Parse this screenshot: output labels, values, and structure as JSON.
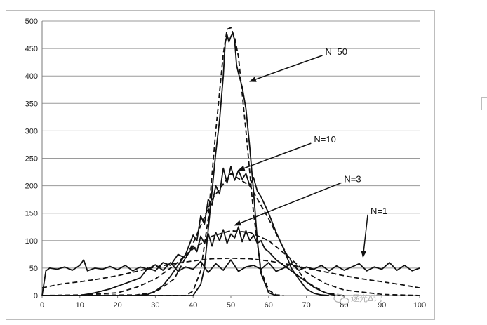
{
  "chart_data": {
    "type": "line",
    "title": "",
    "xlabel": "",
    "ylabel": "",
    "xlim": [
      0,
      100
    ],
    "ylim": [
      0,
      500
    ],
    "x_ticks": [
      0,
      10,
      20,
      30,
      40,
      50,
      60,
      70,
      80,
      90,
      100
    ],
    "y_ticks": [
      0,
      50,
      100,
      150,
      200,
      250,
      300,
      350,
      400,
      450,
      500
    ],
    "grid": "horizontal",
    "legend": "none",
    "line_color": "#111111",
    "series": [
      {
        "style": "solid",
        "x": [
          0,
          1,
          2,
          4,
          6,
          8,
          10,
          11,
          12,
          14,
          16,
          18,
          20,
          22,
          24,
          26,
          28,
          30,
          32,
          34,
          36,
          38,
          40,
          42,
          44,
          46,
          48,
          50,
          52,
          54,
          56,
          58,
          60,
          62,
          64,
          66,
          68,
          70,
          72,
          74,
          76,
          78,
          80,
          82,
          84,
          86,
          88,
          90,
          92,
          94,
          96,
          98,
          100
        ],
        "y": [
          0,
          45,
          50,
          48,
          52,
          46,
          55,
          65,
          45,
          50,
          48,
          53,
          47,
          55,
          45,
          52,
          48,
          56,
          46,
          60,
          44,
          52,
          48,
          62,
          42,
          58,
          46,
          65,
          44,
          52,
          55,
          48,
          60,
          44,
          50,
          58,
          46,
          52,
          48,
          55,
          45,
          54,
          46,
          52,
          58,
          45,
          52,
          48,
          60,
          46,
          55,
          45,
          50
        ]
      },
      {
        "style": "dashed",
        "x": [
          0,
          5,
          10,
          15,
          20,
          25,
          30,
          35,
          40,
          45,
          50,
          55,
          60,
          65,
          70,
          75,
          80,
          85,
          90,
          95,
          100
        ],
        "y": [
          14,
          21,
          25,
          30,
          36,
          44,
          52,
          58,
          63,
          67,
          68,
          67,
          63,
          57,
          50,
          43,
          36,
          30,
          25,
          20,
          14
        ]
      },
      {
        "style": "solid",
        "x": [
          0,
          5,
          10,
          14,
          18,
          22,
          26,
          28,
          30,
          32,
          34,
          36,
          38,
          40,
          41,
          42,
          43,
          44,
          45,
          46,
          47,
          48,
          49,
          50,
          51,
          52,
          53,
          54,
          55,
          56,
          57,
          58,
          59,
          60,
          62,
          64,
          66,
          68,
          70,
          72,
          74,
          76,
          78,
          80
        ],
        "y": [
          0,
          0,
          0,
          5,
          12,
          22,
          32,
          50,
          45,
          60,
          55,
          75,
          68,
          90,
          80,
          108,
          95,
          113,
          90,
          115,
          100,
          120,
          95,
          112,
          105,
          125,
          98,
          118,
          100,
          110,
          95,
          100,
          85,
          80,
          65,
          55,
          45,
          35,
          25,
          15,
          8,
          3,
          0,
          0
        ]
      },
      {
        "style": "dashed",
        "x": [
          0,
          10,
          20,
          25,
          30,
          35,
          40,
          45,
          50,
          55,
          60,
          65,
          70,
          75,
          80,
          90,
          100
        ],
        "y": [
          0,
          1,
          5,
          15,
          30,
          55,
          85,
          108,
          118,
          115,
          100,
          72,
          42,
          22,
          10,
          2,
          0
        ]
      },
      {
        "style": "solid",
        "x": [
          0,
          25,
          28,
          30,
          32,
          34,
          36,
          38,
          40,
          41,
          42,
          43,
          44,
          45,
          46,
          47,
          48,
          49,
          50,
          51,
          52,
          53,
          54,
          55,
          56,
          57,
          58,
          60,
          62,
          64,
          66,
          68,
          70,
          72,
          74,
          76
        ],
        "y": [
          0,
          0,
          2,
          8,
          18,
          35,
          55,
          75,
          110,
          100,
          145,
          130,
          175,
          165,
          200,
          185,
          232,
          205,
          235,
          210,
          228,
          212,
          222,
          200,
          215,
          190,
          180,
          150,
          115,
          85,
          50,
          30,
          12,
          4,
          1,
          0
        ]
      },
      {
        "style": "dashed",
        "x": [
          0,
          25,
          30,
          35,
          40,
          45,
          50,
          55,
          60,
          65,
          70,
          75,
          80
        ],
        "y": [
          0,
          1,
          6,
          30,
          95,
          175,
          222,
          200,
          140,
          72,
          25,
          5,
          0
        ]
      },
      {
        "style": "solid",
        "x": [
          0,
          40,
          42,
          43,
          44,
          45,
          46,
          47,
          48,
          48.5,
          49,
          49.5,
          50,
          50.5,
          51,
          51.5,
          52,
          53,
          54,
          55,
          56,
          57,
          58,
          60,
          62
        ],
        "y": [
          0,
          0,
          20,
          50,
          120,
          190,
          260,
          320,
          400,
          460,
          475,
          462,
          472,
          478,
          465,
          420,
          405,
          380,
          340,
          270,
          190,
          100,
          40,
          5,
          0
        ]
      },
      {
        "style": "dashed",
        "x": [
          0,
          38,
          40,
          42,
          44,
          46,
          48,
          49,
          50,
          51,
          52,
          54,
          56,
          58,
          60,
          62,
          64
        ],
        "y": [
          0,
          0,
          8,
          45,
          140,
          300,
          440,
          485,
          488,
          470,
          435,
          300,
          150,
          45,
          10,
          1,
          0
        ]
      }
    ],
    "annotations": [
      {
        "text": "N=50",
        "x": 75,
        "y": 445,
        "arrow_to": [
          55,
          390
        ]
      },
      {
        "text": "N=10",
        "x": 72,
        "y": 285,
        "arrow_to": [
          52,
          228
        ]
      },
      {
        "text": "N=3",
        "x": 80,
        "y": 213,
        "arrow_to": [
          51,
          128
        ]
      },
      {
        "text": "N=1",
        "x": 87,
        "y": 155,
        "arrow_to": [
          85,
          70
        ]
      }
    ]
  },
  "watermark": {
    "text": "逐光Δ讯"
  }
}
